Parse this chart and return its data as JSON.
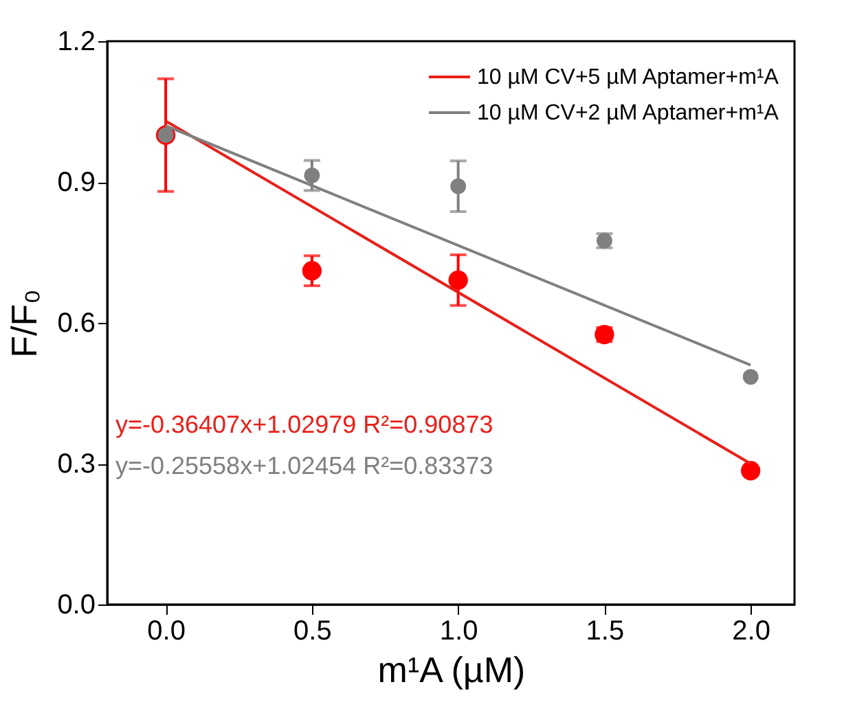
{
  "chart_data": {
    "type": "scatter",
    "xlabel": "m¹A (µM)",
    "ylabel": "F/F₀",
    "xlim": [
      -0.2,
      2.15
    ],
    "ylim": [
      0,
      1.2
    ],
    "xticks": [
      {
        "value": 0,
        "label": "0.0"
      },
      0.5,
      {
        "value": 1,
        "label": "1.0"
      },
      1.5,
      {
        "value": 2,
        "label": "2.0"
      }
    ],
    "yticks": [
      {
        "value": 0,
        "label": "0.0"
      },
      0.3,
      0.6,
      0.9,
      1.2
    ],
    "grid": false,
    "legend": "top right",
    "series": [
      {
        "marker": "circle",
        "color": "#ff0000",
        "x": [
          0,
          0.5,
          1,
          1.5,
          2
        ],
        "values": [
          1.0,
          0.711,
          0.691,
          0.575,
          0.285
        ],
        "errors": [
          0.12,
          0.032,
          0.054,
          0.015,
          null
        ]
      },
      {
        "marker": "circle",
        "color": "#808080",
        "x": [
          0,
          0.5,
          1,
          1.5,
          2
        ],
        "values": [
          1.0,
          0.914,
          0.891,
          0.775,
          0.485
        ],
        "errors": [
          null,
          0.032,
          0.054,
          0.015,
          null
        ]
      },
      {
        "type": "line",
        "name": "10 µM CV+5 µM Aptamer+m¹A",
        "color": "#e8201a",
        "x": [
          0,
          2
        ],
        "values": [
          1.03,
          0.3
        ],
        "marker": "none"
      },
      {
        "type": "line",
        "name": "10 µM CV+2 µM Aptamer+m¹A",
        "color": "#7f7f7f",
        "x": [
          0,
          2
        ],
        "values": [
          1.02,
          0.51
        ],
        "marker": "none"
      }
    ],
    "annotations": [
      "y=-0.36407x+1.02979  R²=0.90873",
      "y=-0.25558x+1.02454  R²=0.83373"
    ]
  }
}
